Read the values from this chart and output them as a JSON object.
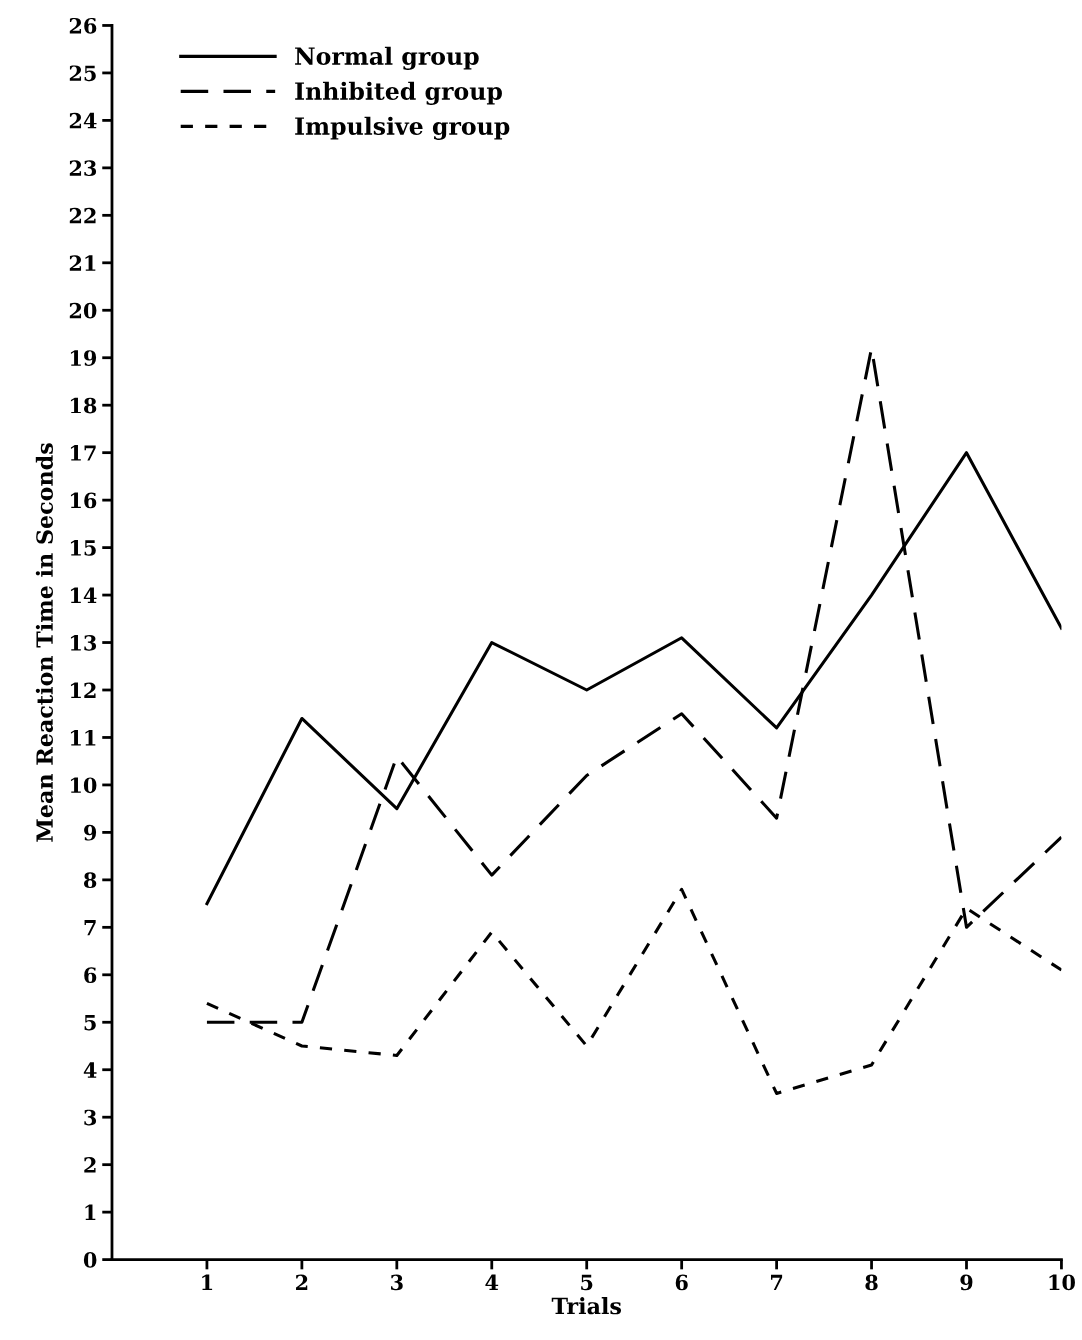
{
  "chart_data": {
    "type": "line",
    "xlabel": "Trials",
    "ylabel": "Mean Reaction Time in Seconds",
    "x": [
      1,
      2,
      3,
      4,
      5,
      6,
      7,
      8,
      9,
      10
    ],
    "series": [
      {
        "name": "Normal group",
        "color": "#000000",
        "line_style": "solid",
        "values": [
          7.5,
          11.4,
          9.5,
          13.0,
          12.0,
          13.1,
          11.2,
          14.0,
          17.0,
          13.3
        ]
      },
      {
        "name": "Inhibited group",
        "color": "#000000",
        "line_style": "dashed",
        "values": [
          5.0,
          5.0,
          10.6,
          8.1,
          10.2,
          11.5,
          9.3,
          19.2,
          7.0,
          8.9
        ]
      },
      {
        "name": "Impulsive group",
        "color": "#000000",
        "line_style": "dotted",
        "values": [
          5.4,
          4.5,
          4.3,
          6.9,
          4.5,
          7.8,
          3.5,
          4.1,
          7.4,
          6.1
        ]
      }
    ],
    "xlim": [
      0,
      10
    ],
    "xticks": [
      1,
      2,
      3,
      4,
      5,
      6,
      7,
      8,
      9,
      10
    ],
    "ylim": [
      0,
      26
    ],
    "yticks": [
      0,
      1,
      2,
      3,
      4,
      5,
      6,
      7,
      8,
      9,
      10,
      11,
      12,
      13,
      14,
      15,
      16,
      17,
      18,
      19,
      20,
      21,
      22,
      23,
      24,
      25,
      26
    ],
    "grid": false,
    "legend": "top left",
    "marker": "none"
  }
}
